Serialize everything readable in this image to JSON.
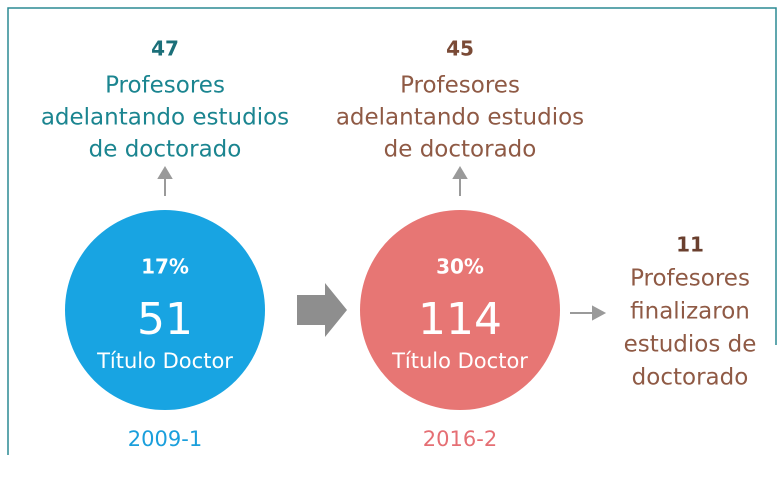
{
  "groups": [
    {
      "count": "47",
      "caption": [
        "Profesores",
        "adelantando estudios",
        "de doctorado"
      ],
      "percent": "17%",
      "total": "51",
      "label": "Título Doctor",
      "period": "2009-1"
    },
    {
      "count": "45",
      "caption": [
        "Profesores",
        "adelantando estudios",
        "de doctorado"
      ],
      "percent": "30%",
      "total": "114",
      "label": "Título Doctor",
      "period": "2016-2"
    }
  ],
  "finished": {
    "count": "11",
    "caption": [
      "Profesores",
      "finalizaron",
      "estudios de",
      "doctorado"
    ]
  }
}
